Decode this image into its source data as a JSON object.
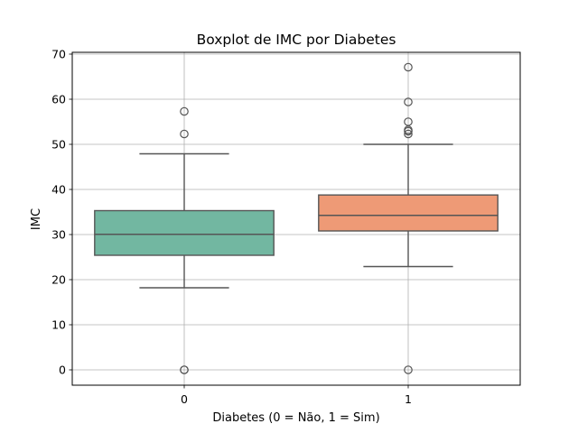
{
  "chart_data": {
    "type": "box",
    "title": "Boxplot de IMC por Diabetes",
    "xlabel": "Diabetes (0 = Não, 1 = Sim)",
    "ylabel": "IMC",
    "categories": [
      "0",
      "1"
    ],
    "ylim": [
      -3.4,
      70.4
    ],
    "yticks": [
      0,
      10,
      20,
      30,
      40,
      50,
      60,
      70
    ],
    "grid": true,
    "boxes": [
      {
        "category": "0",
        "color": "#72b7a1",
        "whisker_low": 18.2,
        "q1": 25.4,
        "median": 30.05,
        "q3": 35.3,
        "whisker_high": 47.9,
        "outliers": [
          0,
          0,
          52.3,
          57.3
        ]
      },
      {
        "category": "1",
        "color": "#ee9a76",
        "whisker_low": 22.9,
        "q1": 30.8,
        "median": 34.25,
        "q3": 38.77,
        "whisker_high": 50.0,
        "outliers": [
          0,
          52.3,
          52.9,
          53.2,
          55.0,
          59.4,
          67.1
        ]
      }
    ]
  }
}
